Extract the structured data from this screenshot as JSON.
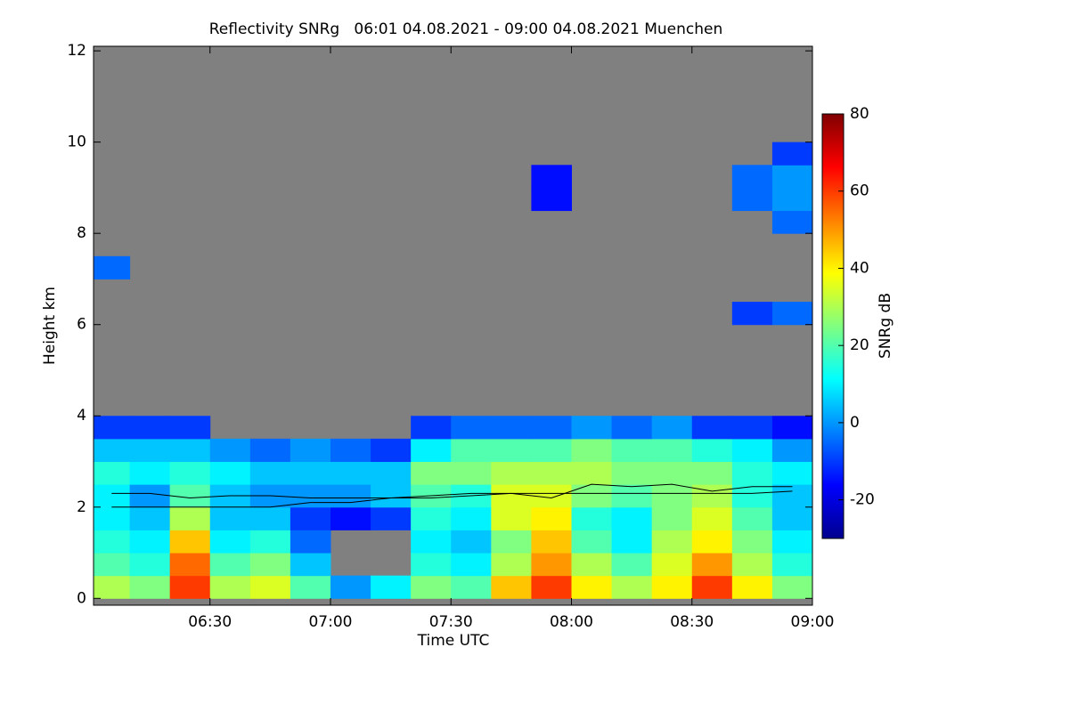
{
  "chart_data": {
    "type": "heatmap",
    "title": "Reflectivity SNRg   06:01 04.08.2021 - 09:00 04.08.2021 Muenchen",
    "x_label": "Time UTC",
    "y_label": "Height km",
    "colorbar_label": "SNRg dB",
    "x_bins": [
      6.0167,
      6.1667,
      6.3333,
      6.5,
      6.6667,
      6.8333,
      7.0,
      7.1667,
      7.3333,
      7.5,
      7.6667,
      7.8333,
      8.0,
      8.1667,
      8.3333,
      8.5,
      8.6667,
      8.8333,
      9.0
    ],
    "y_bins": [
      0,
      0.5,
      1,
      1.5,
      2,
      2.5,
      3,
      3.5,
      4,
      4.5,
      5,
      5.5,
      6,
      6.5,
      7,
      7.5,
      8,
      8.5,
      9,
      9.5,
      10
    ],
    "z": [
      [
        30,
        25,
        60,
        30,
        35,
        20,
        0,
        10,
        25,
        20,
        45,
        60,
        40,
        30,
        40,
        60,
        40,
        25
      ],
      [
        20,
        15,
        55,
        20,
        25,
        5,
        null,
        null,
        15,
        10,
        30,
        50,
        30,
        20,
        35,
        50,
        30,
        15
      ],
      [
        15,
        10,
        45,
        10,
        15,
        -5,
        null,
        null,
        10,
        5,
        25,
        45,
        20,
        10,
        30,
        40,
        25,
        10
      ],
      [
        10,
        5,
        30,
        5,
        5,
        -10,
        -15,
        -10,
        15,
        10,
        35,
        40,
        15,
        10,
        25,
        35,
        20,
        5
      ],
      [
        10,
        0,
        20,
        5,
        0,
        0,
        0,
        5,
        20,
        15,
        35,
        35,
        25,
        20,
        25,
        30,
        15,
        5
      ],
      [
        15,
        10,
        15,
        10,
        5,
        5,
        5,
        5,
        25,
        25,
        30,
        30,
        30,
        25,
        25,
        25,
        15,
        10
      ],
      [
        5,
        5,
        5,
        0,
        -5,
        0,
        -5,
        -10,
        10,
        20,
        20,
        20,
        25,
        20,
        20,
        15,
        10,
        0
      ],
      [
        -10,
        -10,
        -10,
        null,
        null,
        null,
        null,
        null,
        -10,
        -5,
        -5,
        -5,
        0,
        -5,
        0,
        -10,
        -10,
        -15
      ],
      [
        null,
        null,
        null,
        null,
        null,
        null,
        null,
        null,
        null,
        null,
        null,
        null,
        null,
        null,
        null,
        null,
        null,
        null
      ],
      [
        null,
        null,
        null,
        null,
        null,
        null,
        null,
        null,
        null,
        null,
        null,
        null,
        null,
        null,
        null,
        null,
        null,
        null
      ],
      [
        null,
        null,
        null,
        null,
        null,
        null,
        null,
        null,
        null,
        null,
        null,
        null,
        null,
        null,
        null,
        null,
        null,
        null
      ],
      [
        null,
        null,
        null,
        null,
        null,
        null,
        null,
        null,
        null,
        null,
        null,
        null,
        null,
        null,
        null,
        null,
        null,
        null
      ],
      [
        null,
        null,
        null,
        null,
        null,
        null,
        null,
        null,
        null,
        null,
        null,
        null,
        null,
        null,
        null,
        null,
        -10,
        -5
      ],
      [
        null,
        null,
        null,
        null,
        null,
        null,
        null,
        null,
        null,
        null,
        null,
        null,
        null,
        null,
        null,
        null,
        null,
        null
      ],
      [
        -5,
        null,
        null,
        null,
        null,
        null,
        null,
        null,
        null,
        null,
        null,
        null,
        null,
        null,
        null,
        null,
        null,
        null
      ],
      [
        null,
        null,
        null,
        null,
        null,
        null,
        null,
        null,
        null,
        null,
        null,
        null,
        null,
        null,
        null,
        null,
        null,
        null
      ],
      [
        null,
        null,
        null,
        null,
        null,
        null,
        null,
        null,
        null,
        null,
        null,
        null,
        null,
        null,
        null,
        null,
        null,
        -5
      ],
      [
        null,
        null,
        null,
        null,
        null,
        null,
        null,
        null,
        null,
        null,
        null,
        -15,
        null,
        null,
        null,
        null,
        -5,
        0
      ],
      [
        null,
        null,
        null,
        null,
        null,
        null,
        null,
        null,
        null,
        null,
        null,
        -15,
        null,
        null,
        null,
        null,
        -5,
        0
      ],
      [
        null,
        null,
        null,
        null,
        null,
        null,
        null,
        null,
        null,
        null,
        null,
        null,
        null,
        null,
        null,
        null,
        null,
        -10
      ]
    ],
    "lines": [
      {
        "color": "#000000",
        "x": [
          6.0917,
          6.25,
          6.4167,
          6.5833,
          6.75,
          6.9167,
          7.0833,
          7.25,
          7.4167,
          7.5833,
          7.75,
          7.9167,
          8.0833,
          8.25,
          8.4167,
          8.5833,
          8.75,
          8.9167
        ],
        "values": [
          2.0,
          2.0,
          2.0,
          2.0,
          2.0,
          2.1,
          2.1,
          2.2,
          2.2,
          2.25,
          2.3,
          2.3,
          2.3,
          2.3,
          2.3,
          2.3,
          2.3,
          2.35
        ]
      },
      {
        "color": "#000000",
        "x": [
          6.0917,
          6.25,
          6.4167,
          6.5833,
          6.75,
          6.9167,
          7.0833,
          7.25,
          7.4167,
          7.5833,
          7.75,
          7.9167,
          8.0833,
          8.25,
          8.4167,
          8.5833,
          8.75,
          8.9167
        ],
        "values": [
          2.3,
          2.3,
          2.2,
          2.25,
          2.25,
          2.2,
          2.2,
          2.2,
          2.25,
          2.3,
          2.3,
          2.2,
          2.5,
          2.45,
          2.5,
          2.35,
          2.45,
          2.45
        ]
      }
    ],
    "background": "#808080",
    "colorscale": [
      "#00008f",
      "#0000ff",
      "#0080ff",
      "#00ffff",
      "#80ff80",
      "#ffff00",
      "#ff8000",
      "#ff0000",
      "#800000"
    ],
    "xlim": [
      6.0167,
      9.0
    ],
    "xticks": [
      {
        "value": 6.5,
        "label": "06:30"
      },
      {
        "value": 7.0,
        "label": "07:00"
      },
      {
        "value": 7.5,
        "label": "07:30"
      },
      {
        "value": 8.0,
        "label": "08:00"
      },
      {
        "value": 8.5,
        "label": "08:30"
      },
      {
        "value": 9.0,
        "label": "09:00"
      }
    ],
    "ylim": [
      -0.15,
      12.1
    ],
    "yticks": [
      0,
      2,
      4,
      6,
      8,
      10,
      12
    ],
    "clim": [
      -30,
      80
    ],
    "cticks": [
      -20,
      0,
      20,
      40,
      60,
      80
    ]
  }
}
